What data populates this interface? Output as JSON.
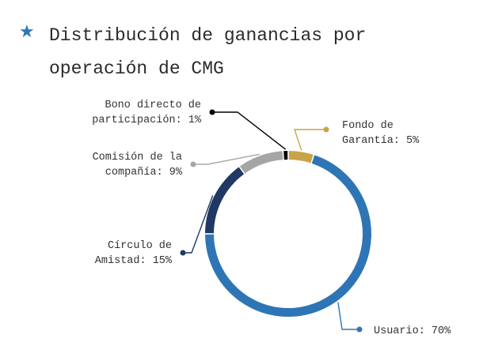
{
  "header": {
    "icon": "star-icon",
    "icon_color": "#2E75B6",
    "title": "Distribución de ganancias por operación de CMG"
  },
  "chart_data": {
    "type": "pie",
    "donut": true,
    "title": "Distribución de ganancias por operación de CMG",
    "slices": [
      {
        "label_lines": [
          "Fondo de",
          "Garantía: 5%"
        ],
        "value": 5,
        "color": "#C9A34A"
      },
      {
        "label_lines": [
          "Usuario: 70%"
        ],
        "value": 70,
        "color": "#2E75B6"
      },
      {
        "label_lines": [
          "Círculo de",
          "Amistad: 15%"
        ],
        "value": 15,
        "color": "#1F3864"
      },
      {
        "label_lines": [
          "Comisión de la",
          "compañía: 9%"
        ],
        "value": 9,
        "color": "#A5A5A5"
      },
      {
        "label_lines": [
          "Bono directo de",
          "participación: 1%"
        ],
        "value": 1,
        "color": "#000000"
      }
    ]
  }
}
